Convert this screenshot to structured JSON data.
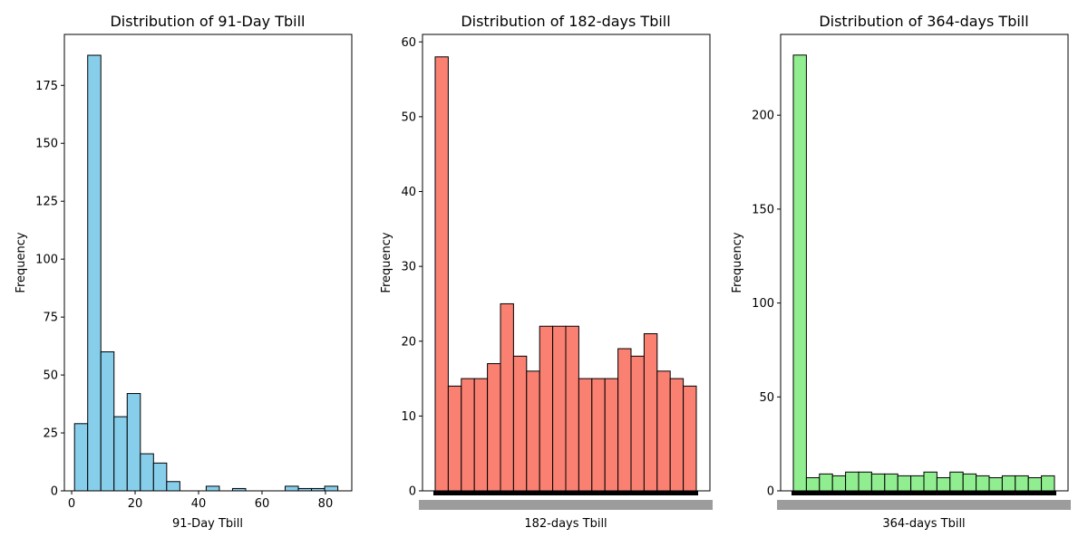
{
  "chart_data": [
    {
      "type": "bar",
      "title": "Distribution of 91-Day Tbill",
      "xlabel": "91-Day Tbill",
      "ylabel": "Frequency",
      "color": "#87ceeb",
      "edge_color": "#000000",
      "bin_edges": [
        0.9,
        5.05,
        9.2,
        13.35,
        17.5,
        21.65,
        25.8,
        29.95,
        34.1,
        38.25,
        42.4,
        46.55,
        50.7,
        54.85,
        59.0,
        63.15,
        67.3,
        71.45,
        75.6,
        79.75,
        83.9
      ],
      "values": [
        29,
        188,
        60,
        32,
        42,
        16,
        12,
        4,
        0,
        0,
        2,
        0,
        1,
        0,
        0,
        0,
        2,
        1,
        1,
        2
      ],
      "xlim": [
        -2.3,
        88.3
      ],
      "ylim": [
        0,
        197
      ],
      "x_ticks": [
        0,
        20,
        40,
        60,
        80
      ],
      "y_ticks": [
        0,
        25,
        50,
        75,
        100,
        125,
        150,
        175
      ]
    },
    {
      "type": "bar",
      "title": "Distribution of 182-days Tbill",
      "xlabel": "182-days Tbill",
      "ylabel": "Frequency",
      "color": "#fa8072",
      "edge_color": "#000000",
      "categorical_overlapping_ticks": true,
      "values": [
        58,
        14,
        15,
        15,
        17,
        25,
        18,
        16,
        22,
        22,
        22,
        15,
        15,
        15,
        19,
        18,
        21,
        16,
        15,
        14
      ],
      "ylim": [
        0,
        61
      ],
      "y_ticks": [
        0,
        10,
        20,
        30,
        40,
        50,
        60
      ]
    },
    {
      "type": "bar",
      "title": "Distribution of 364-days Tbill",
      "xlabel": "364-days Tbill",
      "ylabel": "Frequency",
      "color": "#90ee90",
      "edge_color": "#000000",
      "categorical_overlapping_ticks": true,
      "values": [
        232,
        7,
        9,
        8,
        10,
        10,
        9,
        9,
        8,
        8,
        10,
        7,
        10,
        9,
        8,
        7,
        8,
        8,
        7,
        8
      ],
      "ylim": [
        0,
        243
      ],
      "y_ticks": [
        0,
        50,
        100,
        150,
        200
      ]
    }
  ]
}
